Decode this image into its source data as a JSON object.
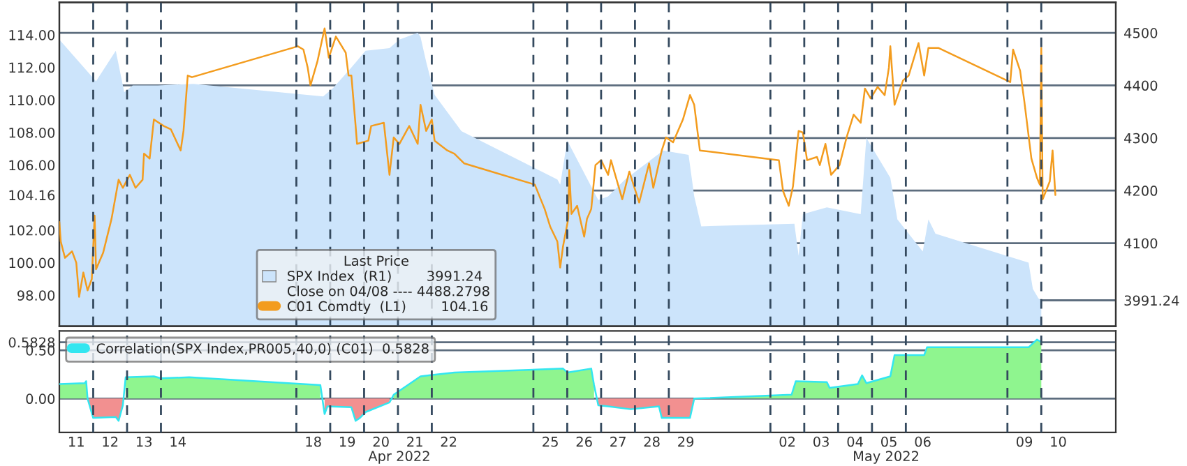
{
  "chart_data": [
    {
      "type": "line",
      "legend_title": "Last Price",
      "legend": "bottom",
      "xlim": [
        "2022-04-11T00:00",
        "2022-05-12T04:48"
      ],
      "tick_labels": "y",
      "ylim": [
        96.1,
        116.0
      ],
      "yticks": [
        {
          "value": 98,
          "label": "98.00"
        },
        {
          "value": 100,
          "label": "100.00"
        },
        {
          "value": 102,
          "label": "102.00"
        },
        {
          "value": 104.16,
          "label": "104.16"
        },
        {
          "value": 106,
          "label": "106.00"
        },
        {
          "value": 108,
          "label": "108.00"
        },
        {
          "value": 110,
          "label": "110.00"
        },
        {
          "value": 112,
          "label": "112.00"
        },
        {
          "value": 114,
          "label": "114.00"
        }
      ],
      "y2lim": [
        3942,
        4558
      ],
      "y2ticks": [
        {
          "value": 3991.24,
          "label": "3991.24"
        },
        4100,
        4200,
        4300,
        4400,
        4500
      ],
      "grid": "y",
      "annotations": [
        "Close on 04/08 ---- 4488.2798"
      ],
      "ref_lines": [
        {
          "axis": "x",
          "value": "2022-04-12",
          "line_style": "dashed",
          "color": "#34495e"
        },
        {
          "axis": "x",
          "value": "2022-04-13",
          "line_style": "dashed",
          "color": "#34495e"
        },
        {
          "axis": "x",
          "value": "2022-04-14",
          "line_style": "dashed",
          "color": "#34495e"
        },
        {
          "axis": "x",
          "value": "2022-04-18",
          "line_style": "dashed",
          "color": "#34495e"
        },
        {
          "axis": "x",
          "value": "2022-04-19",
          "line_style": "dashed",
          "color": "#34495e"
        },
        {
          "axis": "x",
          "value": "2022-04-20",
          "line_style": "dashed",
          "color": "#34495e"
        },
        {
          "axis": "x",
          "value": "2022-04-21",
          "line_style": "dashed",
          "color": "#34495e"
        },
        {
          "axis": "x",
          "value": "2022-04-22",
          "line_style": "dashed",
          "color": "#34495e"
        },
        {
          "axis": "x",
          "value": "2022-04-25",
          "line_style": "dashed",
          "color": "#34495e"
        },
        {
          "axis": "x",
          "value": "2022-04-26",
          "line_style": "dashed",
          "color": "#34495e"
        },
        {
          "axis": "x",
          "value": "2022-04-27",
          "line_style": "dashed",
          "color": "#34495e"
        },
        {
          "axis": "x",
          "value": "2022-04-28",
          "line_style": "dashed",
          "color": "#34495e"
        },
        {
          "axis": "x",
          "value": "2022-04-29",
          "line_style": "dashed",
          "color": "#34495e"
        },
        {
          "axis": "x",
          "value": "2022-05-02",
          "line_style": "dashed",
          "color": "#34495e"
        },
        {
          "axis": "x",
          "value": "2022-05-03",
          "line_style": "dashed",
          "color": "#34495e"
        },
        {
          "axis": "x",
          "value": "2022-05-04",
          "line_style": "dashed",
          "color": "#34495e"
        },
        {
          "axis": "x",
          "value": "2022-05-05",
          "line_style": "dashed",
          "color": "#34495e"
        },
        {
          "axis": "x",
          "value": "2022-05-06",
          "line_style": "dashed",
          "color": "#34495e"
        },
        {
          "axis": "x",
          "value": "2022-05-09",
          "line_style": "dashed",
          "color": "#34495e"
        },
        {
          "axis": "x",
          "value": "2022-05-10",
          "line_style": "dashed",
          "color": "#34495e"
        }
      ],
      "series": [
        {
          "name": "SPX Index  (R1)        3991.24",
          "type": "area",
          "axis": "y2",
          "color": "#cce4fb",
          "x": [
            "2022-04-11T00:00",
            "2022-04-12T02:00",
            "2022-04-12T16:00",
            "2022-04-12T22:00",
            "2022-04-13T04:00",
            "2022-04-13T22:00",
            "2022-04-14T23:00",
            "2022-04-18T19:00",
            "2022-04-19T02:00",
            "2022-04-19T15:00",
            "2022-04-20T01:00",
            "2022-04-20T18:00",
            "2022-04-21T01:00",
            "2022-04-21T14:00",
            "2022-04-21T16:00",
            "2022-04-21T20:00",
            "2022-04-22T02:00",
            "2022-04-22T21:00",
            "2022-04-25T17:00",
            "2022-04-25T19:00",
            "2022-04-26T00:00",
            "2022-04-26T22:00",
            "2022-04-27T05:00",
            "2022-04-27T17:00",
            "2022-04-28T20:00",
            "2022-04-29T14:00",
            "2022-04-29T18:00",
            "2022-04-29T23:00",
            "2022-05-02T17:00",
            "2022-05-02T20:00",
            "2022-05-02T23:00",
            "2022-05-03T16:00",
            "2022-05-04T16:00",
            "2022-05-04T20:00",
            "2022-05-05T13:00",
            "2022-05-05T18:00",
            "2022-05-06T12:00",
            "2022-05-06T16:00",
            "2022-05-06T21:00",
            "2022-05-09T15:00",
            "2022-05-09T18:00",
            "2022-05-09T22:00",
            "2022-05-10T00:00"
          ],
          "values": [
            4487,
            4408,
            4466,
            4387,
            4400,
            4400,
            4403,
            4379,
            4395,
            4434,
            4466,
            4471,
            4487,
            4500,
            4492,
            4445,
            4382,
            4313,
            4221,
            4211,
            4295,
            4182,
            4189,
            4221,
            4276,
            4268,
            4189,
            4132,
            4137,
            4076,
            4155,
            4168,
            4155,
            4300,
            4224,
            4145,
            4084,
            4145,
            4118,
            4063,
            4013,
            3995,
            3991.24
          ]
        },
        {
          "name": "C01 Comdty  (L1)        104.16",
          "type": "line",
          "color": "#f39c1e",
          "x": [
            "2022-04-11T00:00",
            "2022-04-11T01:00",
            "2022-04-11T04:00",
            "2022-04-11T09:00",
            "2022-04-11T12:00",
            "2022-04-11T14:00",
            "2022-04-11T17:00",
            "2022-04-11T20:00",
            "2022-04-11T23:00",
            "2022-04-12T01:00",
            "2022-04-12T02:00",
            "2022-04-12T07:00",
            "2022-04-12T13:00",
            "2022-04-12T18:00",
            "2022-04-12T21:00",
            "2022-04-13T02:00",
            "2022-04-13T06:00",
            "2022-04-13T11:00",
            "2022-04-13T12:00",
            "2022-04-13T16:00",
            "2022-04-13T19:00",
            "2022-04-14T02:00",
            "2022-04-14T07:00",
            "2022-04-14T14:00",
            "2022-04-14T16:00",
            "2022-04-14T19:00",
            "2022-04-14T22:00",
            "2022-04-18T01:00",
            "2022-04-18T05:00",
            "2022-04-18T08:00",
            "2022-04-18T10:00",
            "2022-04-18T15:00",
            "2022-04-18T20:00",
            "2022-04-18T23:00",
            "2022-04-19T04:00",
            "2022-04-19T11:00",
            "2022-04-19T13:00",
            "2022-04-19T15:00",
            "2022-04-19T18:00",
            "2022-04-19T19:00",
            "2022-04-20T03:00",
            "2022-04-20T05:00",
            "2022-04-20T14:00",
            "2022-04-20T18:00",
            "2022-04-20T21:00",
            "2022-04-21T01:00",
            "2022-04-21T08:00",
            "2022-04-21T14:00",
            "2022-04-21T16:00",
            "2022-04-21T20:00",
            "2022-04-22T00:00",
            "2022-04-22T02:00",
            "2022-04-22T11:00",
            "2022-04-22T16:00",
            "2022-04-22T23:00",
            "2022-04-25T01:00",
            "2022-04-25T08:00",
            "2022-04-25T12:00",
            "2022-04-25T17:00",
            "2022-04-25T19:00",
            "2022-04-25T21:00",
            "2022-04-26T00:43",
            "2022-04-26T01:26",
            "2022-04-26T03:00",
            "2022-04-26T07:00",
            "2022-04-26T12:00",
            "2022-04-26T14:00",
            "2022-04-26T17:00",
            "2022-04-26T20:00",
            "2022-04-27T00:00",
            "2022-04-27T05:00",
            "2022-04-27T07:00",
            "2022-04-27T15:00",
            "2022-04-27T20:00",
            "2022-04-28T03:00",
            "2022-04-28T10:00",
            "2022-04-28T13:00",
            "2022-04-28T19:00",
            "2022-04-28T22:00",
            "2022-04-29T03:00",
            "2022-04-29T10:00",
            "2022-04-29T15:00",
            "2022-04-29T18:00",
            "2022-04-29T22:00",
            "2022-05-02T06:00",
            "2022-05-02T09:00",
            "2022-05-02T13:00",
            "2022-05-02T16:00",
            "2022-05-02T20:00",
            "2022-05-02T23:00",
            "2022-05-03T02:00",
            "2022-05-03T09:00",
            "2022-05-03T11:00",
            "2022-05-03T15:00",
            "2022-05-03T19:00",
            "2022-05-04T01:00",
            "2022-05-04T06:00",
            "2022-05-04T11:00",
            "2022-05-04T16:00",
            "2022-05-04T19:00",
            "2022-05-04T23:00",
            "2022-05-05T04:00",
            "2022-05-05T09:00",
            "2022-05-05T12:00",
            "2022-05-05T13:00",
            "2022-05-05T16:00",
            "2022-05-05T22:00",
            "2022-05-06T02:00",
            "2022-05-06T09:00",
            "2022-05-06T13:00",
            "2022-05-06T16:00",
            "2022-05-06T23:00",
            "2022-05-09T02:00",
            "2022-05-09T04:00",
            "2022-05-09T09:00",
            "2022-05-09T12:00",
            "2022-05-09T17:00",
            "2022-05-09T21:00",
            "2022-05-09T23:00",
            "2022-05-10T00:00",
            "2022-05-10T01:00",
            "2022-05-10T06:00",
            "2022-05-10T08:00",
            "2022-05-10T10:00"
          ],
          "values": [
            102.5,
            101.3,
            100.3,
            100.7,
            100.0,
            97.9,
            99.4,
            98.3,
            99.0,
            102.9,
            99.6,
            100.6,
            102.7,
            105.1,
            104.6,
            105.4,
            104.6,
            105.1,
            106.7,
            106.4,
            108.8,
            108.4,
            108.2,
            106.9,
            108.1,
            111.5,
            111.4,
            113.3,
            113.1,
            112.0,
            110.9,
            112.4,
            114.4,
            112.6,
            113.9,
            112.9,
            111.5,
            111.5,
            108.4,
            107.3,
            107.5,
            108.4,
            108.6,
            105.4,
            107.7,
            107.3,
            108.4,
            107.3,
            109.7,
            108.1,
            108.8,
            107.5,
            106.9,
            106.7,
            106.1,
            104.8,
            103.3,
            102.2,
            101.3,
            99.7,
            101.0,
            102.7,
            105.7,
            103.0,
            103.5,
            101.6,
            102.7,
            103.3,
            106.0,
            106.3,
            105.4,
            106.3,
            103.9,
            105.6,
            103.7,
            106.1,
            104.6,
            106.9,
            107.7,
            107.4,
            108.8,
            110.3,
            109.7,
            106.9,
            106.3,
            104.4,
            103.5,
            104.7,
            108.1,
            108.0,
            106.3,
            106.5,
            106.0,
            107.3,
            105.4,
            106.0,
            107.7,
            109.1,
            108.6,
            110.7,
            110.1,
            110.8,
            110.3,
            112.0,
            113.3,
            109.7,
            111.2,
            111.5,
            113.5,
            111.5,
            113.2,
            113.2,
            111.1,
            113.1,
            111.8,
            109.9,
            106.4,
            105.2,
            104.8,
            113.2,
            103.9,
            105.0,
            106.9,
            104.16
          ]
        }
      ]
    },
    {
      "type": "area",
      "legend": "top left",
      "xlim": [
        "2022-04-11T00:00",
        "2022-05-12T04:48"
      ],
      "xticks": [
        {
          "value": "2022-04-11T12:00",
          "label": "11"
        },
        {
          "value": "2022-04-12T12:00",
          "label": "12"
        },
        {
          "value": "2022-04-13T12:00",
          "label": "13"
        },
        {
          "value": "2022-04-14T12:00",
          "label": "14"
        },
        {
          "value": "2022-04-18T12:00",
          "label": "18"
        },
        {
          "value": "2022-04-19T12:00",
          "label": "19"
        },
        {
          "value": "2022-04-20T12:00",
          "label": "20"
        },
        {
          "value": "2022-04-21T12:00",
          "label": "21"
        },
        {
          "value": "2022-04-22T12:00",
          "label": "22"
        },
        {
          "value": "2022-04-25T12:00",
          "label": "25"
        },
        {
          "value": "2022-04-26T12:00",
          "label": "26"
        },
        {
          "value": "2022-04-27T12:00",
          "label": "27"
        },
        {
          "value": "2022-04-28T12:00",
          "label": "28"
        },
        {
          "value": "2022-04-29T12:00",
          "label": "29"
        },
        {
          "value": "2022-05-02T12:00",
          "label": "02"
        },
        {
          "value": "2022-05-03T12:00",
          "label": "03"
        },
        {
          "value": "2022-05-04T12:00",
          "label": "04"
        },
        {
          "value": "2022-05-05T12:00",
          "label": "05"
        },
        {
          "value": "2022-05-06T12:00",
          "label": "06"
        },
        {
          "value": "2022-05-09T12:00",
          "label": "09"
        },
        {
          "value": "2022-05-10T12:00",
          "label": "10"
        }
      ],
      "x2lim": [
        "2022-04-11T00:00",
        "2022-05-12T04:48"
      ],
      "x2ticks": [
        {
          "value": "2022-04-21T01:00",
          "label": "Apr 2022"
        },
        {
          "value": "2022-05-05T10:00",
          "label": "May 2022"
        }
      ],
      "ylim": [
        -0.35,
        0.7
      ],
      "yticks": [
        {
          "value": 0,
          "label": "0.00"
        },
        {
          "value": 0.5,
          "label": "0.50"
        },
        {
          "value": 0.5828,
          "label": "0.5828"
        }
      ],
      "grid": "y",
      "ref_lines": [
        {
          "axis": "x",
          "value": "2022-04-12",
          "line_style": "dashed",
          "color": "#34495e"
        },
        {
          "axis": "x",
          "value": "2022-04-13",
          "line_style": "dashed",
          "color": "#34495e"
        },
        {
          "axis": "x",
          "value": "2022-04-14",
          "line_style": "dashed",
          "color": "#34495e"
        },
        {
          "axis": "x",
          "value": "2022-04-18",
          "line_style": "dashed",
          "color": "#34495e"
        },
        {
          "axis": "x",
          "value": "2022-04-19",
          "line_style": "dashed",
          "color": "#34495e"
        },
        {
          "axis": "x",
          "value": "2022-04-20",
          "line_style": "dashed",
          "color": "#34495e"
        },
        {
          "axis": "x",
          "value": "2022-04-21",
          "line_style": "dashed",
          "color": "#34495e"
        },
        {
          "axis": "x",
          "value": "2022-04-22",
          "line_style": "dashed",
          "color": "#34495e"
        },
        {
          "axis": "x",
          "value": "2022-04-25",
          "line_style": "dashed",
          "color": "#34495e"
        },
        {
          "axis": "x",
          "value": "2022-04-26",
          "line_style": "dashed",
          "color": "#34495e"
        },
        {
          "axis": "x",
          "value": "2022-04-27",
          "line_style": "dashed",
          "color": "#34495e"
        },
        {
          "axis": "x",
          "value": "2022-04-28",
          "line_style": "dashed",
          "color": "#34495e"
        },
        {
          "axis": "x",
          "value": "2022-04-29",
          "line_style": "dashed",
          "color": "#34495e"
        },
        {
          "axis": "x",
          "value": "2022-05-02",
          "line_style": "dashed",
          "color": "#34495e"
        },
        {
          "axis": "x",
          "value": "2022-05-03",
          "line_style": "dashed",
          "color": "#34495e"
        },
        {
          "axis": "x",
          "value": "2022-05-04",
          "line_style": "dashed",
          "color": "#34495e"
        },
        {
          "axis": "x",
          "value": "2022-05-05",
          "line_style": "dashed",
          "color": "#34495e"
        },
        {
          "axis": "x",
          "value": "2022-05-06",
          "line_style": "dashed",
          "color": "#34495e"
        },
        {
          "axis": "x",
          "value": "2022-05-09",
          "line_style": "dashed",
          "color": "#34495e"
        },
        {
          "axis": "x",
          "value": "2022-05-10",
          "line_style": "dashed",
          "color": "#34495e"
        }
      ],
      "series": [
        {
          "name": "Correlation(SPX Index,PR005,40,0) (C01)  0.5828",
          "type": "line",
          "color": "#33e6f0",
          "values": [
            0.15,
            0.16,
            0.18,
            0.0,
            -0.2,
            -0.19,
            -0.23,
            -0.07,
            0.22,
            0.23,
            0.21,
            0.22,
            0.14,
            -0.16,
            -0.08,
            -0.09,
            -0.23,
            -0.2,
            -0.14,
            -0.04,
            0.04,
            0.23,
            0.24,
            0.27,
            0.31,
            0.27,
            0.31,
            0.14,
            -0.07,
            -0.08,
            -0.11,
            -0.08,
            -0.2,
            -0.2,
            0.0,
            0.04,
            0.18,
            0.17,
            0.11,
            0.15,
            0.24,
            0.16,
            0.23,
            0.45,
            0.45,
            0.53,
            0.53,
            0.61,
            0.5828
          ]
        },
        {
          "type": "area",
          "color": "#8ff58f",
          "values": [
            0.15,
            0.16,
            0.18,
            0.0,
            null,
            null,
            null,
            null,
            0.22,
            0.23,
            0.21,
            0.22,
            0.14,
            null,
            null,
            null,
            null,
            null,
            null,
            null,
            0.04,
            0.23,
            0.24,
            0.27,
            0.31,
            0.27,
            0.31,
            0.14,
            null,
            null,
            null,
            null,
            null,
            null,
            0.0,
            0.04,
            0.18,
            0.17,
            0.11,
            0.15,
            0.24,
            0.16,
            0.23,
            0.45,
            0.45,
            0.53,
            0.53,
            0.61,
            0.5828
          ]
        },
        {
          "type": "area",
          "color": "#f29090",
          "values": [
            null,
            null,
            null,
            0.0,
            -0.2,
            -0.19,
            -0.23,
            -0.07,
            null,
            null,
            null,
            null,
            null,
            -0.16,
            -0.08,
            -0.09,
            -0.23,
            -0.2,
            -0.14,
            -0.04,
            null,
            null,
            null,
            null,
            null,
            null,
            null,
            null,
            -0.07,
            -0.08,
            -0.11,
            -0.08,
            -0.2,
            -0.2,
            0.0,
            null,
            null,
            null,
            null,
            null,
            null,
            null,
            null,
            null,
            null,
            null,
            null,
            null,
            null
          ]
        }
      ],
      "x": [
        "2022-04-11T00:00",
        "2022-04-11T18:00",
        "2022-04-11T19:00",
        "2022-04-11T20:00",
        "2022-04-12T00:00",
        "2022-04-12T16:00",
        "2022-04-12T18:00",
        "2022-04-12T21:00",
        "2022-04-12T23:00",
        "2022-04-13T19:00",
        "2022-04-14T00:00",
        "2022-04-14T20:00",
        "2022-04-18T17:00",
        "2022-04-18T20:00",
        "2022-04-18T22:00",
        "2022-04-19T15:00",
        "2022-04-19T18:00",
        "2022-04-19T21:00",
        "2022-04-20T01:00",
        "2022-04-20T18:00",
        "2022-04-20T21:00",
        "2022-04-21T16:00",
        "2022-04-21T22:00",
        "2022-04-22T16:00",
        "2022-04-25T21:00",
        "2022-04-26T00:00",
        "2022-04-26T17:00",
        "2022-04-26T19:00",
        "2022-04-26T22:00",
        "2022-04-27T05:00",
        "2022-04-27T21:00",
        "2022-04-28T17:00",
        "2022-04-28T19:00",
        "2022-04-29T15:00",
        "2022-04-29T18:00",
        "2022-05-02T15:00",
        "2022-05-02T18:00",
        "2022-05-03T16:00",
        "2022-05-03T18:00",
        "2022-05-04T14:00",
        "2022-05-04T17:00",
        "2022-05-04T20:00",
        "2022-05-05T13:00",
        "2022-05-05T16:00",
        "2022-05-06T13:00",
        "2022-05-06T15:00",
        "2022-05-09T15:00",
        "2022-05-09T21:00",
        "2022-05-10T00:00"
      ],
      "tick_labels": true
    }
  ]
}
